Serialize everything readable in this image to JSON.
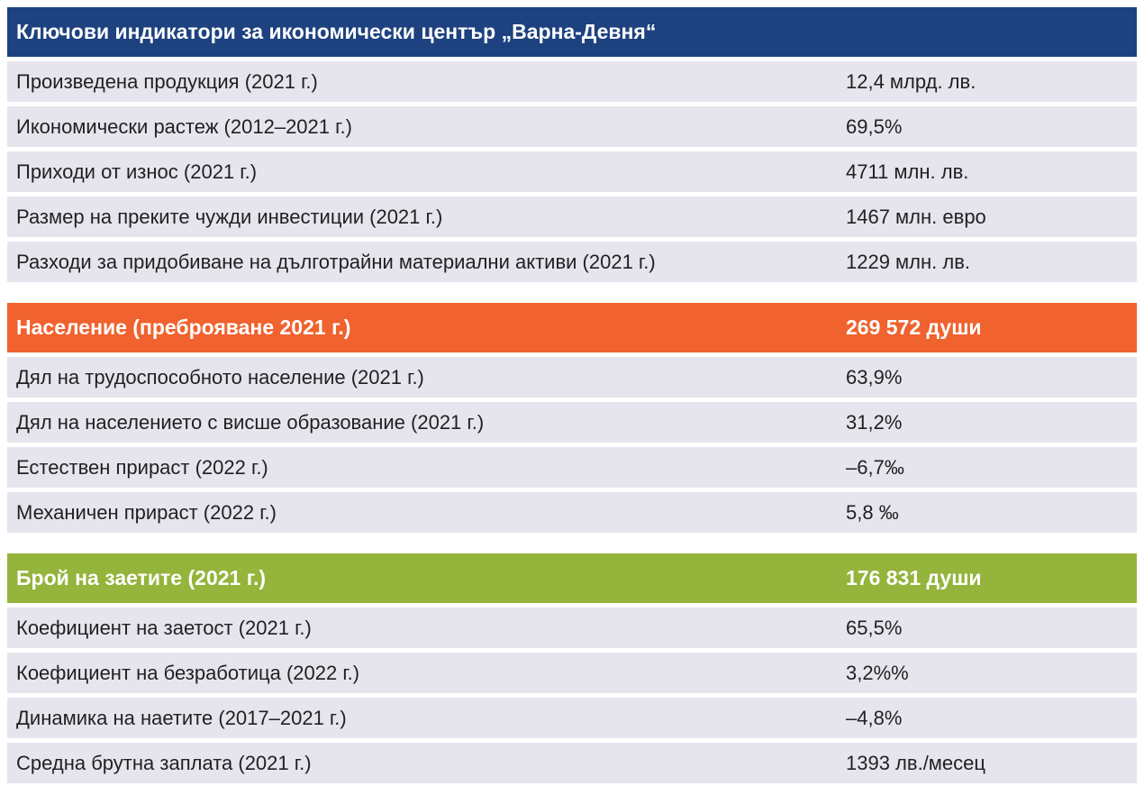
{
  "colors": {
    "economic_header": "#1e4280",
    "population_header": "#f0622e",
    "employment_header": "#94b43b",
    "row_background": "#e6e5ee"
  },
  "economic": {
    "title": "Ключови индикатори за икономически център „Варна-Девня“",
    "rows": [
      {
        "label": "Произведена продукция (2021 г.)",
        "value": "12,4 млрд. лв."
      },
      {
        "label": "Икономически растеж (2012–2021 г.)",
        "value": "69,5%"
      },
      {
        "label": "Приходи от износ (2021 г.)",
        "value": "4711 млн. лв."
      },
      {
        "label": "Размер на преките чужди инвестиции (2021 г.)",
        "value": "1467 млн. евро"
      },
      {
        "label": "Разходи за придобиване на дълготрайни материални активи (2021 г.)",
        "value": "1229 млн. лв."
      }
    ]
  },
  "population": {
    "title": "Население (преброяване 2021 г.)",
    "value": "269 572 души",
    "rows": [
      {
        "label": "Дял на трудоспособното население (2021 г.)",
        "value": "63,9%"
      },
      {
        "label": "Дял на населението с висше образование (2021 г.)",
        "value": "31,2%"
      },
      {
        "label": "Естествен прираст (2022 г.)",
        "value": "–6,7‰"
      },
      {
        "label": "Механичен прираст (2022 г.)",
        "value": "5,8 ‰"
      }
    ]
  },
  "employment": {
    "title": "Брой на заетите (2021 г.)",
    "value": "176 831 души",
    "rows": [
      {
        "label": "Коефициент на заетост (2021 г.)",
        "value": "65,5%"
      },
      {
        "label": "Коефициент на безработица (2022 г.)",
        "value": "3,2%%"
      },
      {
        "label": "Динамика на наетите (2017–2021 г.)",
        "value": "–4,8%"
      },
      {
        "label": "Средна брутна заплата (2021 г.)",
        "value": "1393 лв./месец"
      }
    ]
  }
}
